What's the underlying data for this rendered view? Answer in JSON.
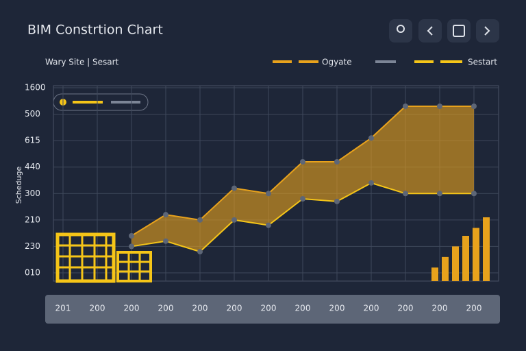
{
  "header": {
    "title": "BIM Constrtion Chart",
    "subtitle": "Wary Site | Sesart"
  },
  "chart_data": {
    "type": "area",
    "y_label": "Scheduge",
    "categories": [
      "201",
      "200",
      "200",
      "200",
      "200",
      "200",
      "200",
      "200",
      "200",
      "200",
      "200",
      "200",
      "200"
    ],
    "series": [
      {
        "name": "Ogyate",
        "color": "#e8a21c",
        "values": [
          null,
          null,
          1.4,
          2.2,
          2.0,
          3.2,
          3.0,
          4.2,
          4.2,
          5.1,
          6.3,
          6.3,
          6.3
        ]
      },
      {
        "name": "Sestart",
        "color": "#f5c518",
        "values": [
          null,
          null,
          1.0,
          1.2,
          0.8,
          2.0,
          1.8,
          2.8,
          2.7,
          3.4,
          3.0,
          3.0,
          3.0
        ]
      }
    ],
    "bars": {
      "color": "#e8a21c",
      "values": [
        0.2,
        0.6,
        1.0,
        1.4,
        1.7,
        2.1
      ]
    },
    "ylim": [
      0,
      7
    ],
    "yticks": [
      {
        "value": 0,
        "label": "010"
      },
      {
        "value": 1,
        "label": "230"
      },
      {
        "value": 2,
        "label": "210"
      },
      {
        "value": 3,
        "label": "300"
      },
      {
        "value": 4,
        "label": "440"
      },
      {
        "value": 5,
        "label": "615"
      },
      {
        "value": 6,
        "label": "500"
      },
      {
        "value": 7,
        "label": "1600"
      }
    ],
    "grid": true
  }
}
